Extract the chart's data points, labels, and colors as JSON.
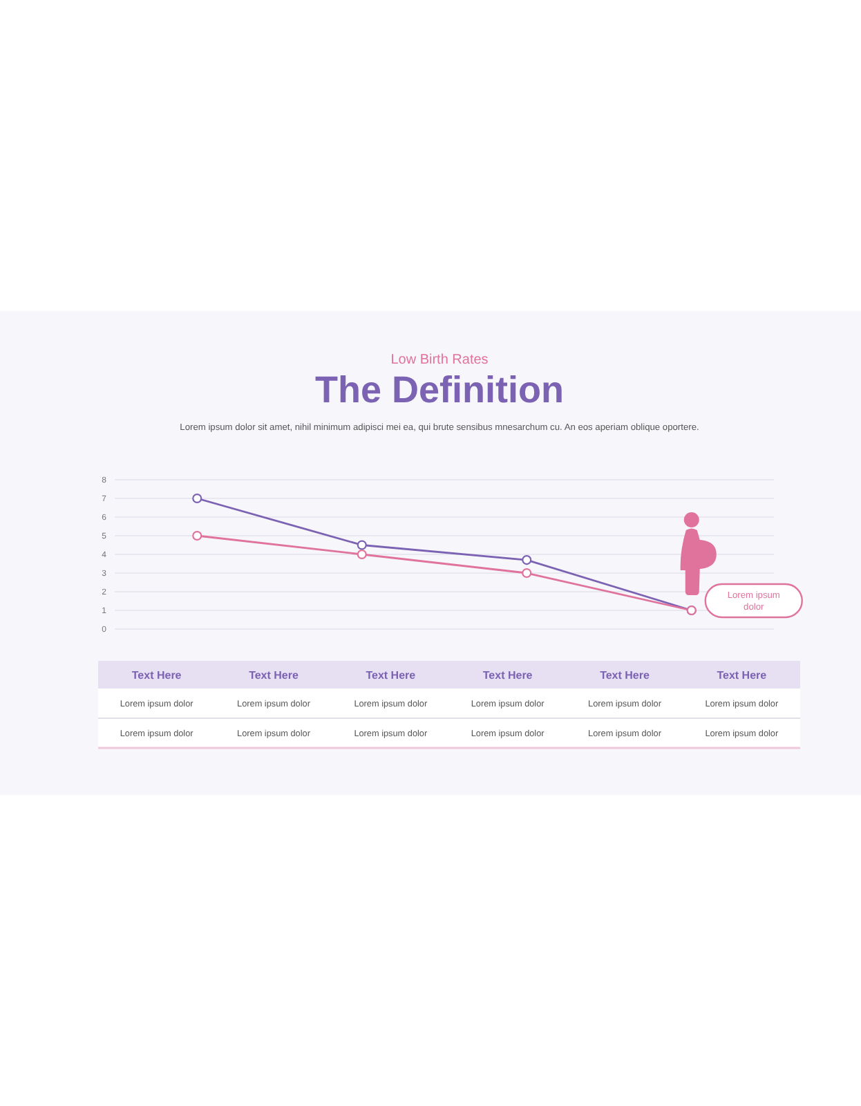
{
  "chart_data": [
    {
      "type": "line",
      "title": "The Definition",
      "subtitle": "Lorem ipsum dolor sit amet, nihil minimum adipisci mei ea, qui brute sensibus mnesarchum cu. An eos aperiam oblique oportere.",
      "annotations": [
        "Low Birth Rates",
        "Lorem ipsum dolor"
      ],
      "categories": [
        null,
        null,
        null,
        null
      ],
      "series": [
        {
          "color": "#7b62b3",
          "values": [
            7,
            4.5,
            3.7,
            1
          ]
        },
        {
          "color": "#e0739c",
          "values": [
            5,
            4,
            3,
            1
          ]
        }
      ],
      "ylim": [
        0,
        8
      ],
      "yticks": [
        0,
        1,
        2,
        3,
        4,
        5,
        6,
        7,
        8
      ],
      "grid": "y",
      "legend": false,
      "marker": "circle",
      "line_style": "solid"
    },
    {
      "type": "other",
      "categories": [
        "Text Here",
        "Text Here",
        "Text Here",
        "Text Here",
        "Text Here",
        "Text Here"
      ],
      "annotations": [
        "Lorem ipsum dolor",
        "Lorem ipsum dolor",
        "Lorem ipsum dolor",
        "Lorem ipsum dolor",
        "Lorem ipsum dolor",
        "Lorem ipsum dolor",
        "Lorem ipsum dolor",
        "Lorem ipsum dolor",
        "Lorem ipsum dolor",
        "Lorem ipsum dolor",
        "Lorem ipsum dolor",
        "Lorem ipsum dolor"
      ]
    }
  ]
}
